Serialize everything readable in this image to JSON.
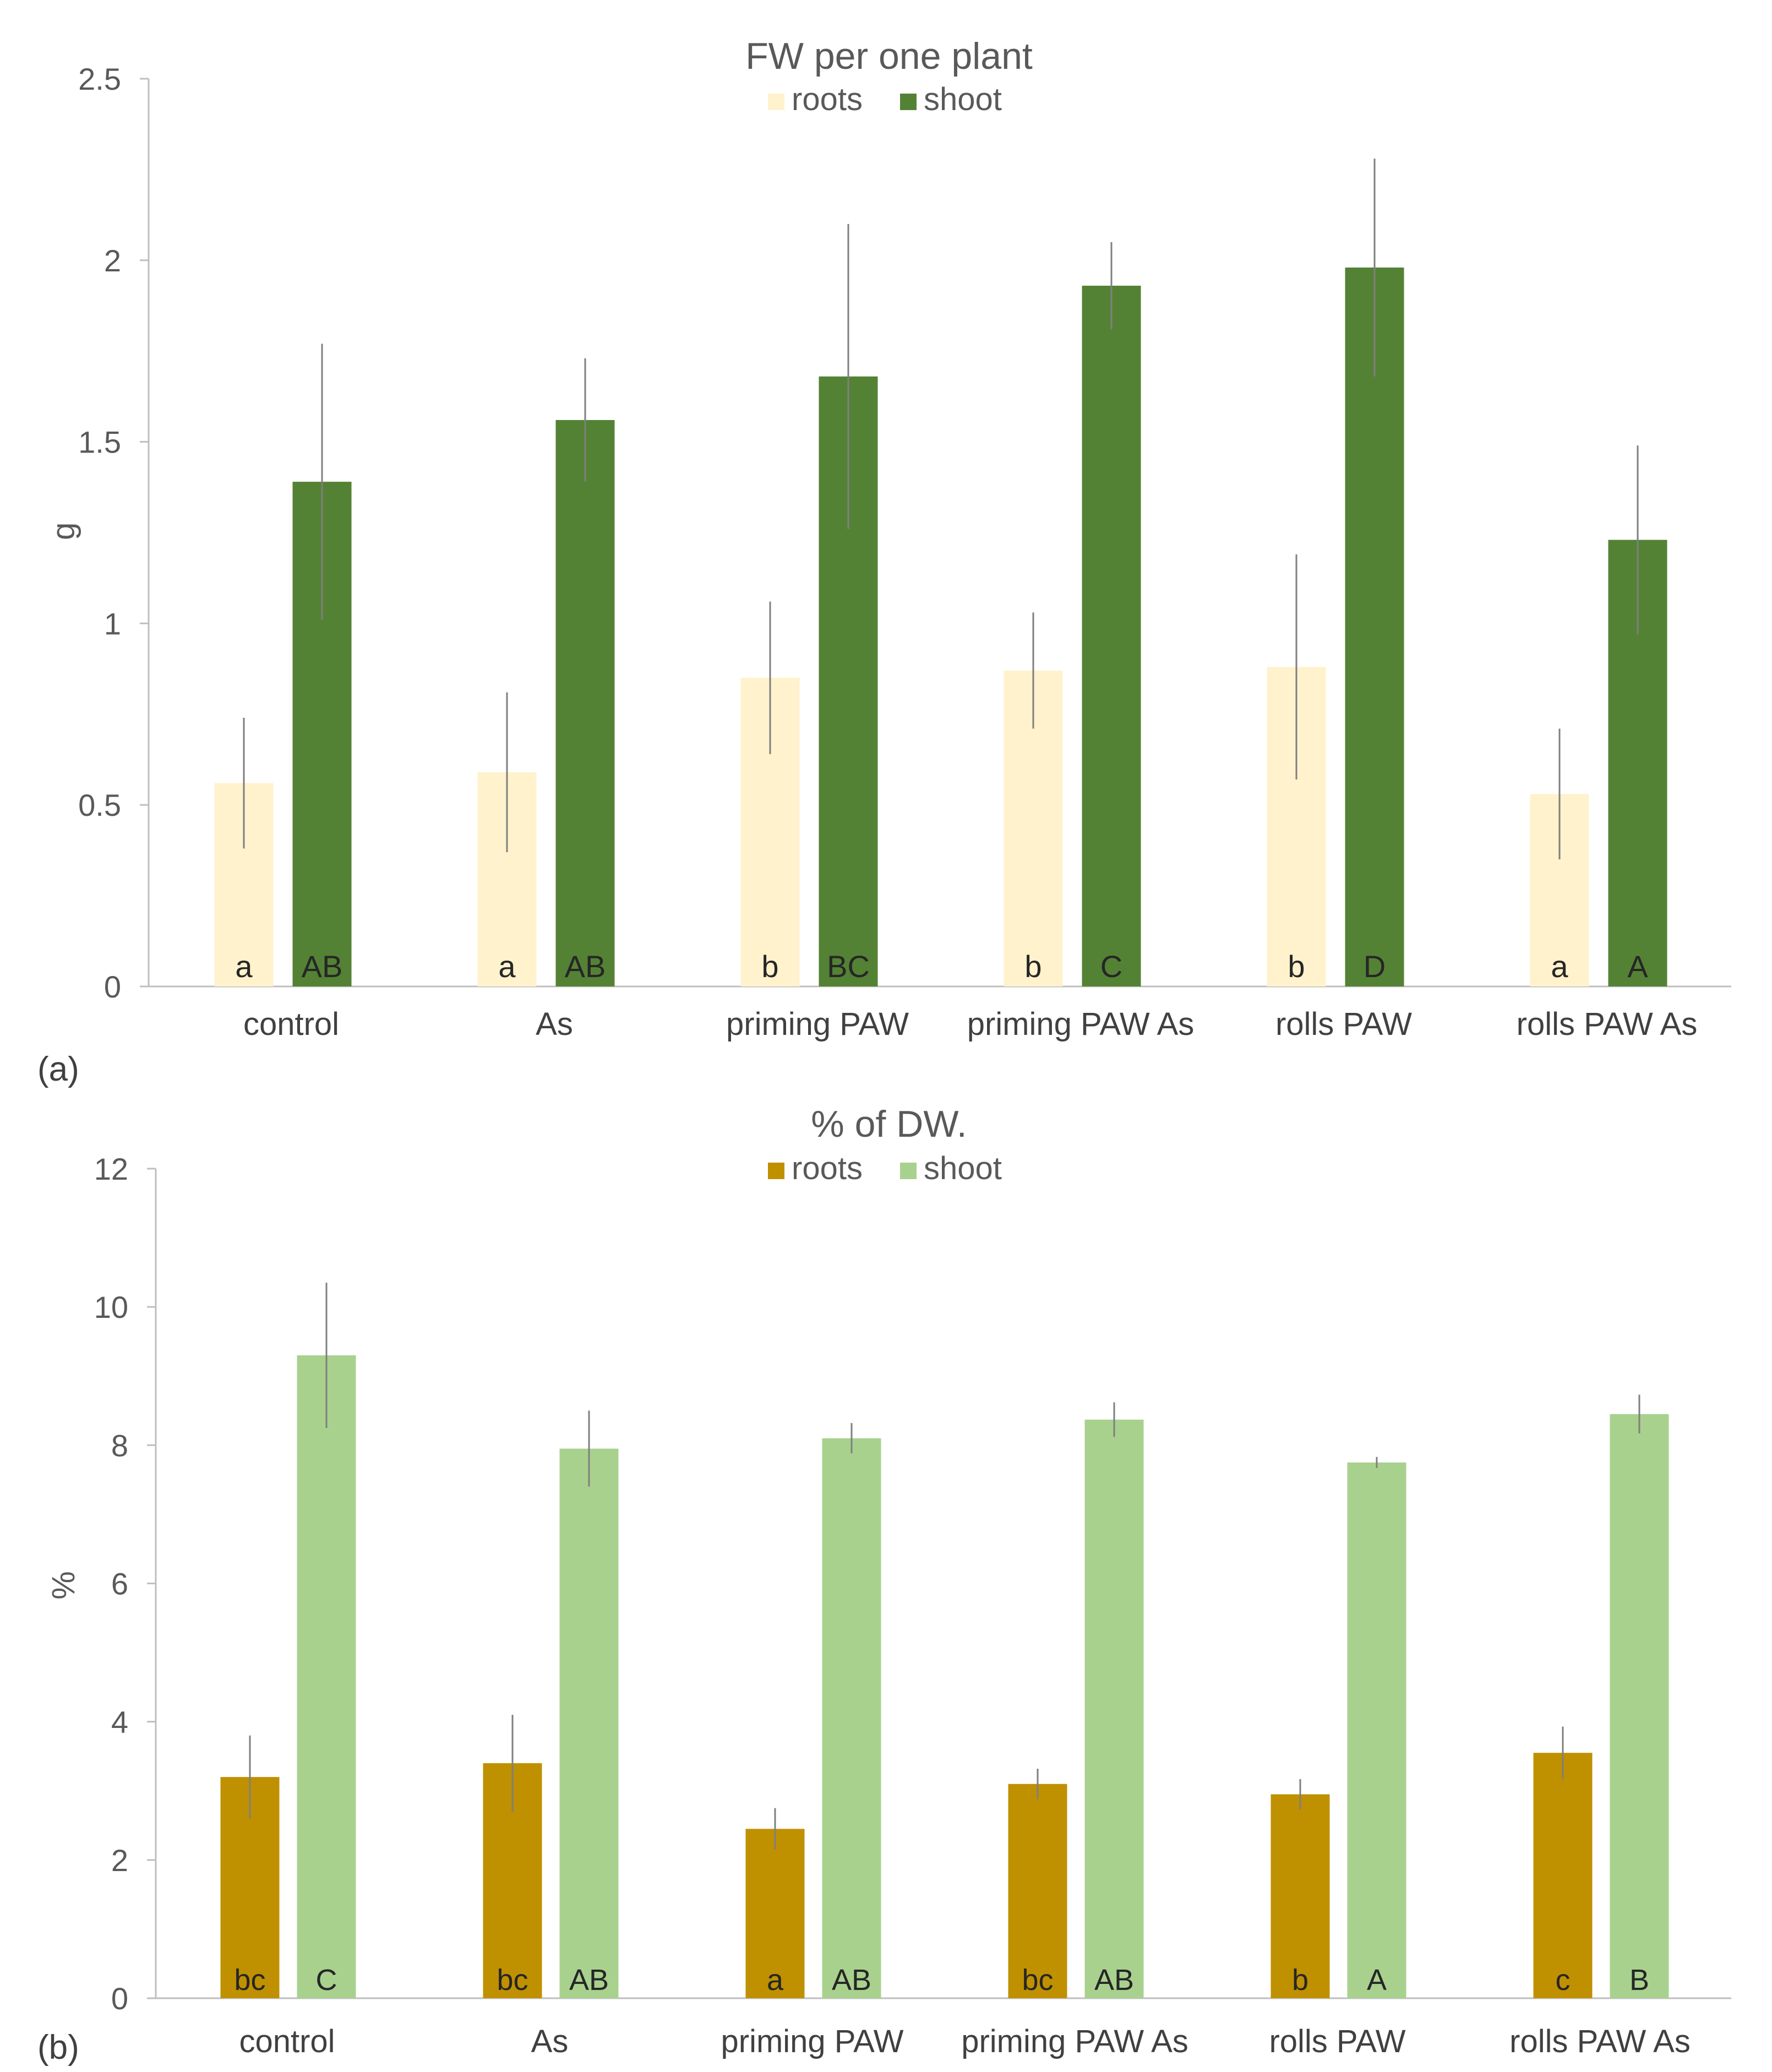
{
  "chart_data": [
    {
      "type": "bar",
      "panel_label": "(a)",
      "title": "FW per one plant",
      "ylabel": "g",
      "xlabel": "",
      "ylim": [
        0,
        2.5
      ],
      "yticks": [
        0,
        0.5,
        1,
        1.5,
        2,
        2.5
      ],
      "ytick_labels": [
        "0",
        "0.5",
        "1",
        "1.5",
        "2",
        "2.5"
      ],
      "grid": false,
      "legend_position": "top-center",
      "categories": [
        "control",
        "As",
        "priming PAW",
        "priming PAW As",
        "rolls PAW",
        "rolls PAW As"
      ],
      "series": [
        {
          "name": "roots",
          "color": "#FFF2CC",
          "values": [
            0.56,
            0.59,
            0.85,
            0.87,
            0.88,
            0.53
          ],
          "errors": [
            0.18,
            0.22,
            0.21,
            0.16,
            0.31,
            0.18
          ],
          "letters": [
            "a",
            "a",
            "b",
            "b",
            "b",
            "a"
          ]
        },
        {
          "name": "shoot",
          "color": "#548235",
          "values": [
            1.39,
            1.56,
            1.68,
            1.93,
            1.98,
            1.23
          ],
          "errors": [
            0.38,
            0.17,
            0.42,
            0.12,
            0.3,
            0.26
          ],
          "letters": [
            "AB",
            "AB",
            "BC",
            "C",
            "D",
            "A"
          ]
        }
      ]
    },
    {
      "type": "bar",
      "panel_label": "(b)",
      "title": "% of DW.",
      "ylabel": "%",
      "xlabel": "",
      "ylim": [
        0,
        12
      ],
      "yticks": [
        0,
        2,
        4,
        6,
        8,
        10,
        12
      ],
      "ytick_labels": [
        "0",
        "2",
        "4",
        "6",
        "8",
        "10",
        "12"
      ],
      "grid": false,
      "legend_position": "top-center",
      "categories": [
        "control",
        "As",
        "priming PAW",
        "priming PAW As",
        "rolls PAW",
        "rolls PAW As"
      ],
      "series": [
        {
          "name": "roots",
          "color": "#BF9000",
          "values": [
            3.2,
            3.4,
            2.45,
            3.1,
            2.95,
            3.55
          ],
          "errors": [
            0.6,
            0.7,
            0.3,
            0.22,
            0.22,
            0.38
          ],
          "letters": [
            "bc",
            "bc",
            "a",
            "bc",
            "b",
            "c"
          ]
        },
        {
          "name": "shoot",
          "color": "#A9D18E",
          "values": [
            9.3,
            7.95,
            8.1,
            8.37,
            7.75,
            8.45
          ],
          "errors": [
            1.05,
            0.55,
            0.22,
            0.25,
            0.08,
            0.28
          ],
          "letters": [
            "C",
            "AB",
            "AB",
            "AB",
            "A",
            "B"
          ]
        }
      ]
    }
  ]
}
